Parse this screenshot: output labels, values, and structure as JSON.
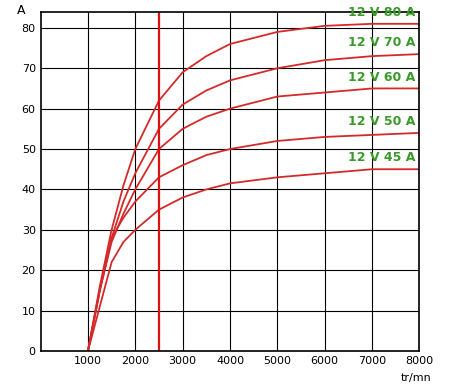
{
  "chart_data": {
    "type": "line",
    "x_label": "tr/mn",
    "y_label": "A",
    "x": [
      1000,
      1250,
      1500,
      1750,
      2000,
      2500,
      3000,
      3500,
      4000,
      5000,
      6000,
      7000,
      8000
    ],
    "series": [
      {
        "name": "12 V 80 A",
        "color": "#d42a2a",
        "values": [
          0,
          16,
          30,
          41,
          50,
          62,
          69,
          73,
          76,
          79,
          80.5,
          81,
          81
        ]
      },
      {
        "name": "12 V 70 A",
        "color": "#d42a2a",
        "values": [
          0,
          15,
          28,
          37,
          44,
          55,
          61,
          64.5,
          67,
          70,
          72,
          73,
          73.5
        ]
      },
      {
        "name": "12 V 60 A",
        "color": "#d42a2a",
        "values": [
          0,
          15,
          27,
          34,
          40,
          50,
          55,
          58,
          60,
          63,
          64,
          65,
          65
        ]
      },
      {
        "name": "12 V 50 A",
        "color": "#d42a2a",
        "values": [
          0,
          15,
          28,
          33,
          37,
          43,
          46,
          48.5,
          50,
          52,
          53,
          53.5,
          54
        ]
      },
      {
        "name": "12 V 45 A",
        "color": "#d42a2a",
        "values": [
          0,
          11,
          22,
          27,
          30,
          35,
          38,
          40,
          41.5,
          43,
          44,
          45,
          45
        ]
      }
    ],
    "vline": 2500,
    "xlim": [
      0,
      8000
    ],
    "ylim": [
      0,
      84
    ],
    "xticks": [
      1000,
      2000,
      3000,
      4000,
      5000,
      6000,
      7000,
      8000
    ],
    "yticks": [
      0,
      10,
      20,
      30,
      40,
      50,
      60,
      70,
      80
    ],
    "grid": true
  }
}
